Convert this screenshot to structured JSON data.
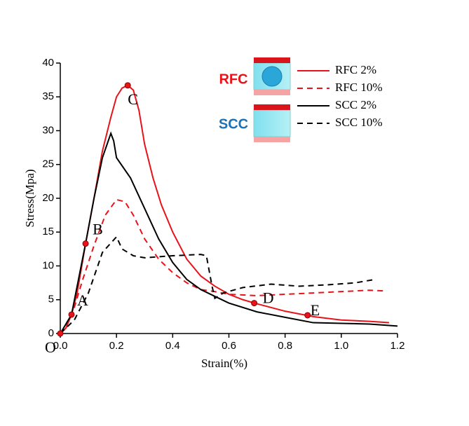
{
  "chart_data": {
    "type": "line",
    "xlabel": "Strain(%)",
    "ylabel": "Stress(Mpa)",
    "xlim": [
      0,
      1.2
    ],
    "xticks": [
      {
        "value": 0,
        "label": "0.0"
      },
      0.2,
      0.4,
      0.6,
      0.8,
      {
        "value": 1,
        "label": "1.0"
      },
      1.2
    ],
    "ylim": [
      0,
      40
    ],
    "yticks": [
      0,
      5,
      10,
      15,
      20,
      25,
      30,
      35,
      40
    ],
    "series": [
      {
        "name": "RFC 2%",
        "color": "#e8131a",
        "dash": false,
        "x": [
          0,
          0.02,
          0.04,
          0.06,
          0.09,
          0.12,
          0.15,
          0.18,
          0.2,
          0.22,
          0.24,
          0.26,
          0.28,
          0.3,
          0.33,
          0.36,
          0.4,
          0.45,
          0.5,
          0.55,
          0.6,
          0.65,
          0.7,
          0.8,
          0.9,
          1.0,
          1.1,
          1.17
        ],
        "values": [
          0,
          0.8,
          2.8,
          6,
          13.3,
          20,
          27,
          32,
          35,
          36.3,
          36.7,
          36,
          33,
          28,
          23,
          19,
          15,
          11,
          8.5,
          7,
          5.8,
          5,
          4.4,
          3.3,
          2.5,
          2,
          1.8,
          1.6
        ]
      },
      {
        "name": "RFC 10%",
        "color": "#e8131a",
        "dash": true,
        "x": [
          0,
          0.04,
          0.08,
          0.12,
          0.16,
          0.2,
          0.23,
          0.26,
          0.3,
          0.35,
          0.4,
          0.45,
          0.5,
          0.55,
          0.6,
          0.7,
          0.8,
          0.9,
          1.0,
          1.1,
          1.15
        ],
        "values": [
          0,
          2.5,
          8,
          13,
          17.5,
          19.8,
          19.5,
          17.5,
          14,
          11,
          9,
          7.5,
          6.5,
          6.2,
          5.8,
          5.6,
          5.8,
          6,
          6.2,
          6.4,
          6.3
        ]
      },
      {
        "name": "SCC 2%",
        "color": "#000000",
        "dash": false,
        "x": [
          0,
          0.04,
          0.09,
          0.12,
          0.15,
          0.18,
          0.19,
          0.2,
          0.25,
          0.3,
          0.35,
          0.4,
          0.45,
          0.5,
          0.55,
          0.6,
          0.7,
          0.8,
          0.9,
          1.0,
          1.1,
          1.2
        ],
        "values": [
          0,
          2.8,
          13.3,
          20,
          26,
          29.6,
          28.5,
          26,
          23,
          18.5,
          14,
          10.5,
          8,
          6.5,
          5.5,
          4.5,
          3.2,
          2.4,
          1.6,
          1.5,
          1.4,
          1.1
        ]
      },
      {
        "name": "SCC 10%",
        "color": "#000000",
        "dash": true,
        "x": [
          0,
          0.05,
          0.1,
          0.15,
          0.2,
          0.22,
          0.26,
          0.3,
          0.4,
          0.5,
          0.52,
          0.54,
          0.55,
          0.58,
          0.65,
          0.75,
          0.85,
          0.95,
          1.05,
          1.12
        ],
        "values": [
          0,
          2,
          6,
          12,
          14.3,
          12.5,
          11.5,
          11.2,
          11.5,
          11.7,
          11.5,
          7,
          5.2,
          6,
          6.8,
          7.3,
          7,
          7.2,
          7.5,
          8
        ]
      }
    ],
    "points": [
      {
        "label": "O",
        "x": 0,
        "y": 0
      },
      {
        "label": "A",
        "x": 0.04,
        "y": 2.8
      },
      {
        "label": "B",
        "x": 0.09,
        "y": 13.3
      },
      {
        "label": "C",
        "x": 0.24,
        "y": 36.7
      },
      {
        "label": "D",
        "x": 0.69,
        "y": 4.5
      },
      {
        "label": "E",
        "x": 0.88,
        "y": 2.7
      }
    ],
    "annotations": [
      "RFC",
      "SCC"
    ]
  }
}
